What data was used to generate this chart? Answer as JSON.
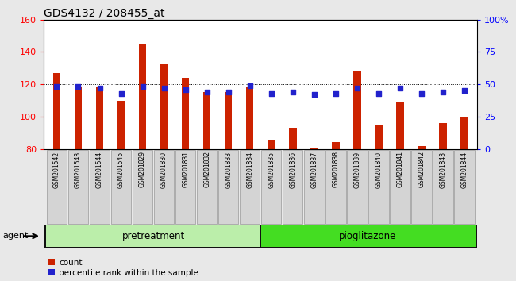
{
  "title": "GDS4132 / 208455_at",
  "samples": [
    "GSM201542",
    "GSM201543",
    "GSM201544",
    "GSM201545",
    "GSM201829",
    "GSM201830",
    "GSM201831",
    "GSM201832",
    "GSM201833",
    "GSM201834",
    "GSM201835",
    "GSM201836",
    "GSM201837",
    "GSM201838",
    "GSM201839",
    "GSM201840",
    "GSM201841",
    "GSM201842",
    "GSM201843",
    "GSM201844"
  ],
  "counts": [
    127,
    118,
    118,
    110,
    145,
    133,
    124,
    115,
    115,
    118,
    85,
    93,
    81,
    84,
    128,
    95,
    109,
    82,
    96,
    100
  ],
  "percentiles": [
    48,
    48,
    47,
    43,
    48,
    47,
    46,
    44,
    44,
    49,
    43,
    44,
    42,
    43,
    47,
    43,
    47,
    43,
    44,
    45
  ],
  "pretreatment_count": 10,
  "pioglitazone_count": 10,
  "bar_color": "#cc2200",
  "dot_color": "#2222cc",
  "pretreatment_color": "#bbeeaa",
  "pioglitazone_color": "#44dd22",
  "agent_label": "agent",
  "pretreatment_label": "pretreatment",
  "pioglitazone_label": "pioglitazone",
  "legend_count_label": "count",
  "legend_pct_label": "percentile rank within the sample",
  "fig_bg": "#e8e8e8",
  "cell_bg": "#d4d4d4",
  "cell_edge": "#999999",
  "plot_bg": "#ffffff"
}
